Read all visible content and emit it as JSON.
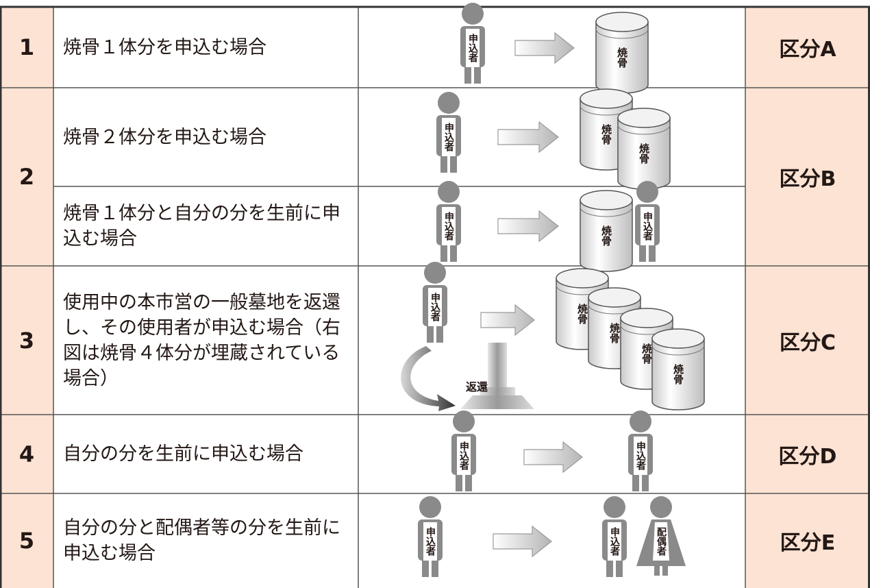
{
  "table": {
    "rows": [
      {
        "number": "1",
        "cases": [
          "焼骨１体分を申込む場合"
        ],
        "category": "区分A"
      },
      {
        "number": "2",
        "cases": [
          "焼骨２体分を申込む場合",
          "焼骨１体分と自分の分を生前に申込む場合"
        ],
        "category": "区分B"
      },
      {
        "number": "3",
        "cases": [
          "使用中の本市営の一般墓地を返還し、その使用者が申込む場合（右図は焼骨４体分が埋蔵されている場合）"
        ],
        "category": "区分C"
      },
      {
        "number": "4",
        "cases": [
          "自分の分を生前に申込む場合"
        ],
        "category": "区分D"
      },
      {
        "number": "5",
        "cases": [
          "自分の分と配偶者等の分を生前に申込む場合"
        ],
        "category": "区分E"
      }
    ]
  },
  "icons": {
    "applicant": "申込者",
    "bones": "焼骨",
    "return": "返還",
    "spouse": "配偶者"
  }
}
